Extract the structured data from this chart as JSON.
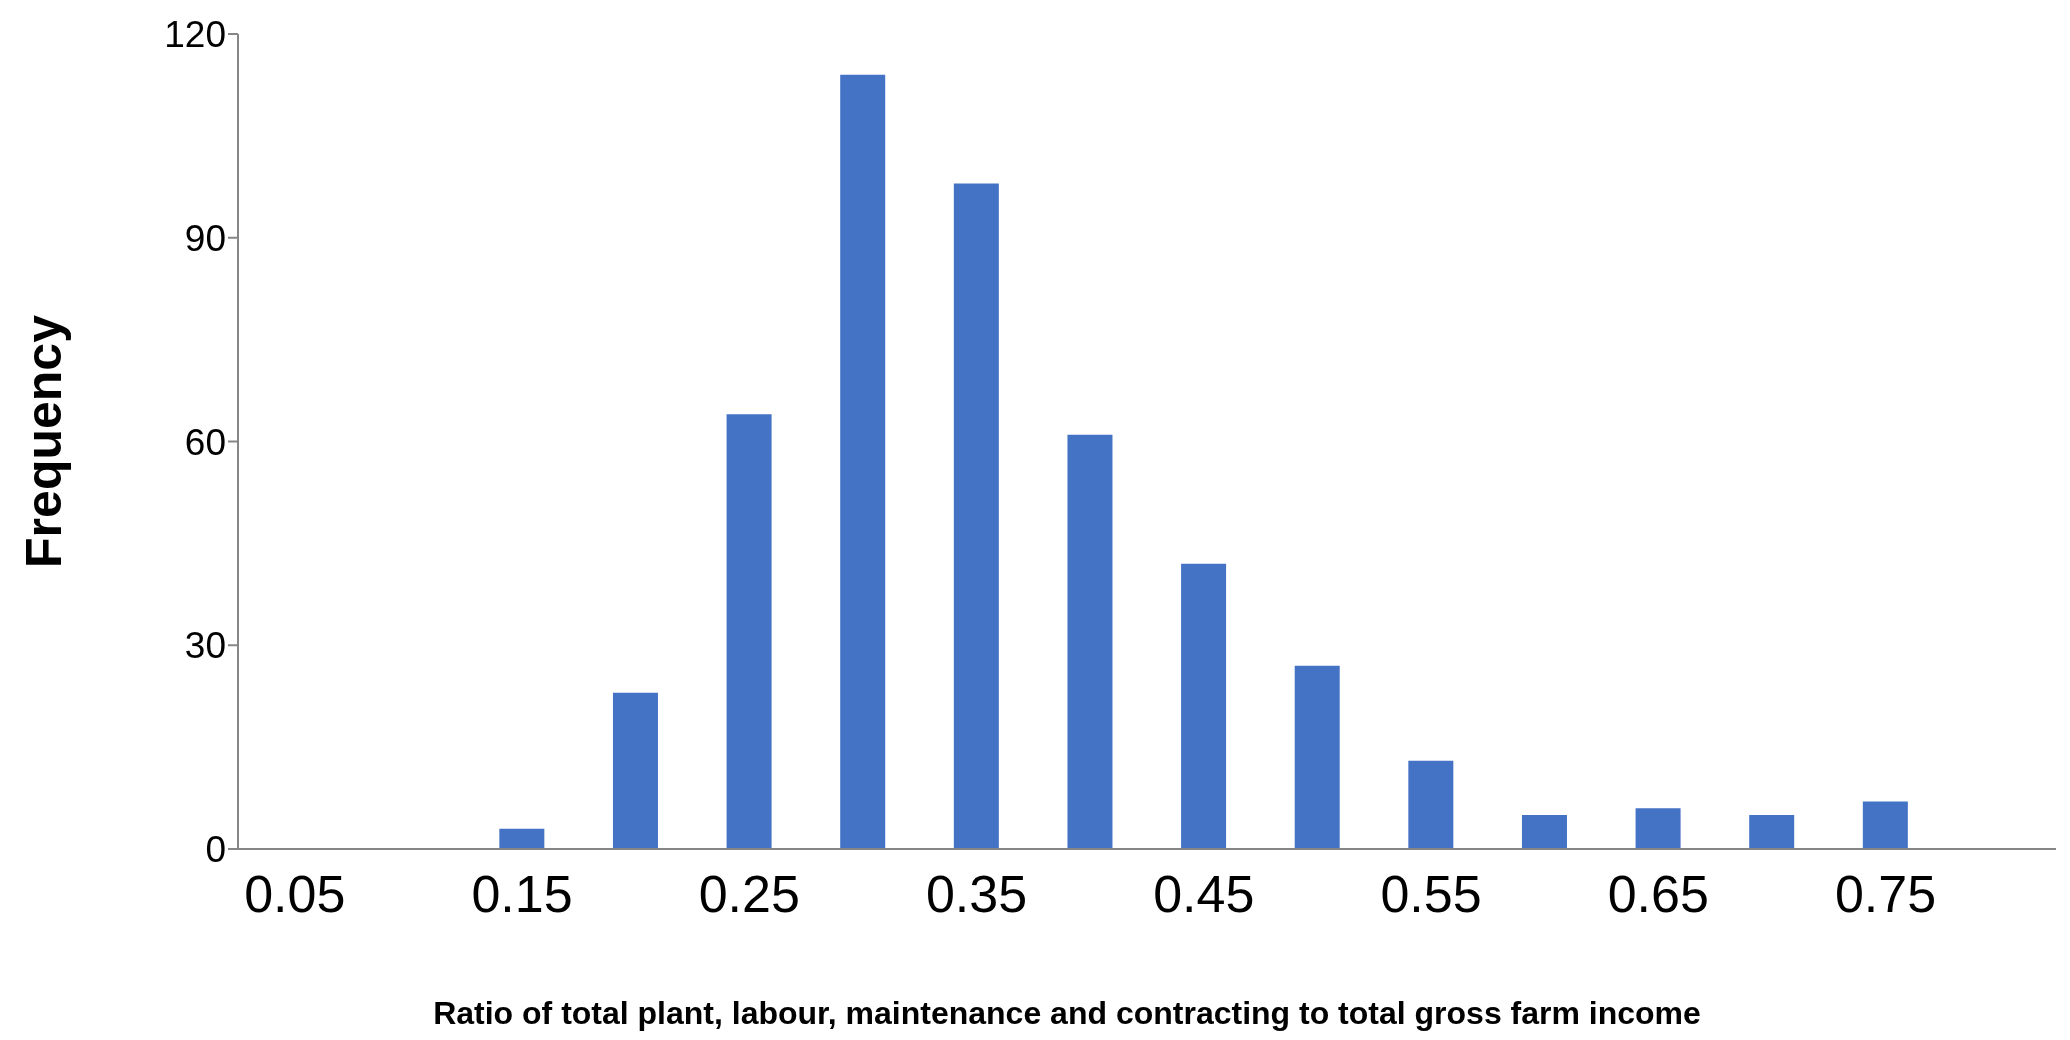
{
  "chart_data": {
    "type": "bar",
    "xlabel": "Ratio of total plant, labour, maintenance and contracting to total gross farm income",
    "ylabel": "Frequency",
    "categories": [
      "0.05",
      null,
      "0.15",
      null,
      "0.25",
      null,
      "0.35",
      null,
      "0.45",
      null,
      "0.55",
      null,
      "0.65",
      null,
      "0.75",
      null
    ],
    "values": [
      0,
      0,
      3,
      23,
      64,
      114,
      98,
      61,
      42,
      27,
      13,
      5,
      6,
      5,
      7,
      0
    ],
    "color": "#4472c4",
    "ylim": [
      0,
      120
    ],
    "yticks": [
      0,
      30,
      60,
      90,
      120
    ],
    "grid": false,
    "legend": false
  }
}
